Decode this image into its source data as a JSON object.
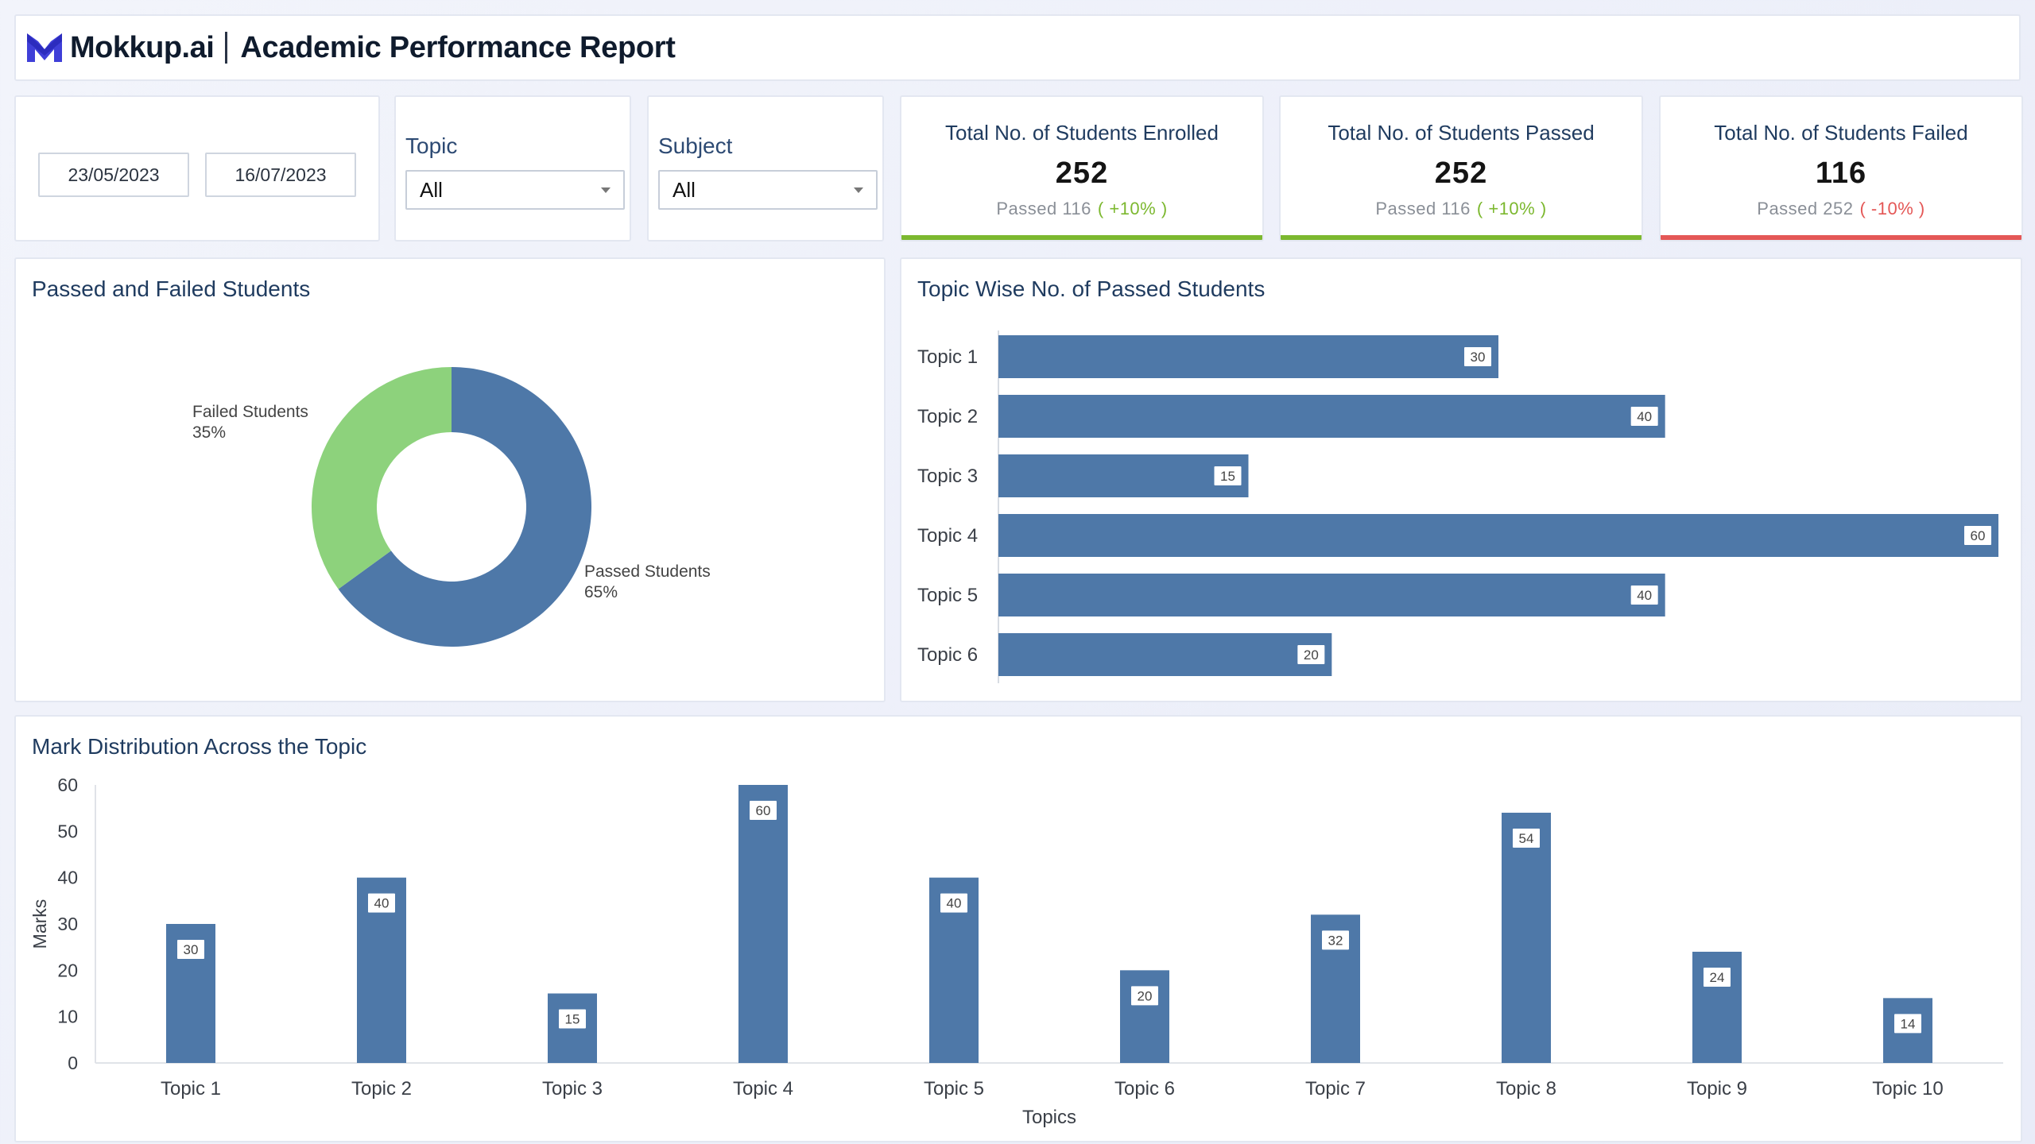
{
  "header": {
    "brand": "Mokkup.ai",
    "title": "Academic Performance Report"
  },
  "filters": {
    "start_date": "23/05/2023",
    "end_date": "16/07/2023",
    "topic_label": "Topic",
    "topic_value": "All",
    "subject_label": "Subject",
    "subject_value": "All"
  },
  "kpis": {
    "enrolled": {
      "title": "Total No. of Students Enrolled",
      "value": "252",
      "sub": "Passed 116",
      "delta": "( +10% )"
    },
    "passed": {
      "title": "Total No. of Students Passed",
      "value": "252",
      "sub": "Passed 116",
      "delta": "( +10% )"
    },
    "failed": {
      "title": "Total No. of Students Failed",
      "value": "116",
      "sub": "Passed 252",
      "delta": "( -10% )"
    }
  },
  "colors": {
    "primary": "#4e78a8",
    "secondary": "#8dd27c",
    "positive": "#7cb82f",
    "negative": "#e45756",
    "title_text": "#1f3b5f"
  },
  "chart_data": [
    {
      "type": "pie",
      "title": "Passed and Failed Students",
      "categories": [
        "Passed Students",
        "Failed Students"
      ],
      "values": [
        65,
        35
      ],
      "labels": [
        "65%",
        "35%"
      ],
      "colors": [
        "#4e78a8",
        "#8dd27c"
      ]
    },
    {
      "type": "bar",
      "orientation": "horizontal",
      "title": "Topic Wise No. of Passed Students",
      "categories": [
        "Topic 1",
        "Topic 2",
        "Topic 3",
        "Topic 4",
        "Topic 5",
        "Topic 6"
      ],
      "values": [
        30,
        40,
        15,
        60,
        40,
        20
      ]
    },
    {
      "type": "bar",
      "title": "Mark Distribution Across the Topic",
      "categories": [
        "Topic 1",
        "Topic 2",
        "Topic 3",
        "Topic 4",
        "Topic 5",
        "Topic 6",
        "Topic 7",
        "Topic 8",
        "Topic 9",
        "Topic 10"
      ],
      "values": [
        30,
        40,
        15,
        60,
        40,
        20,
        32,
        54,
        24,
        14
      ],
      "xlabel": "Topics",
      "ylabel": "Marks",
      "ylim": [
        0,
        60
      ],
      "yticks": [
        0,
        10,
        20,
        30,
        40,
        50,
        60
      ]
    }
  ]
}
